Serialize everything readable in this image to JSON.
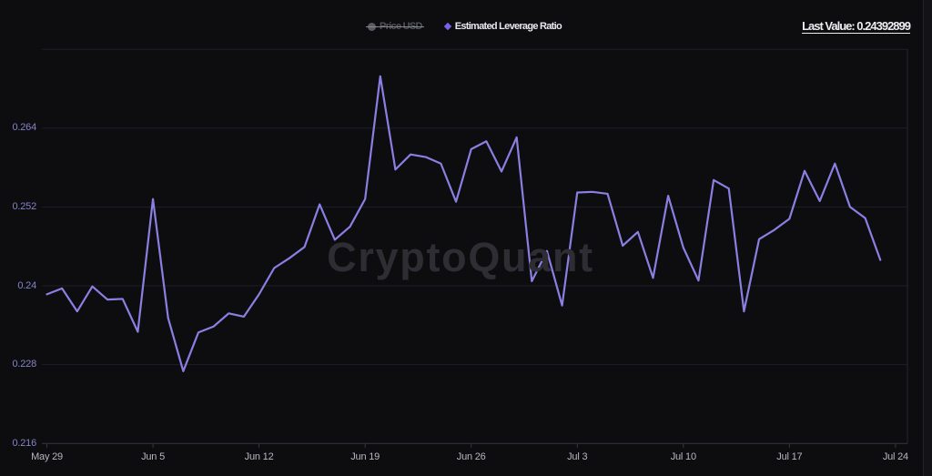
{
  "header": {
    "last_value_text": "Last Value: 0.24392899"
  },
  "legend": {
    "items": [
      {
        "label": "Price USD",
        "marker": "circle",
        "disabled": true,
        "marker_color": "#5a5a61"
      },
      {
        "label": "Estimated Leverage Ratio",
        "marker": "diamond",
        "disabled": false,
        "marker_color": "#7a5ee6"
      }
    ]
  },
  "watermark": {
    "text": "CryptoQuant"
  },
  "colors": {
    "background": "#0d0d10",
    "series_line": "#8b7fe2",
    "gridline": "#1f1f24",
    "axis_line": "#36363c",
    "plot_right_border": "#28282d",
    "y_label": "#8683c6",
    "x_label": "#b8b8bd"
  },
  "chart_data": {
    "type": "line",
    "title": "",
    "xlabel": "",
    "ylabel": "",
    "legend_position": "top-center",
    "grid": "horizontal",
    "series": [
      {
        "name": "Estimated Leverage Ratio",
        "color": "#8b7fe2",
        "values": [
          0.2387,
          0.2396,
          0.2361,
          0.2399,
          0.2379,
          0.238,
          0.233,
          0.2532,
          0.2351,
          0.227,
          0.2329,
          0.2338,
          0.2358,
          0.2353,
          0.2387,
          0.2427,
          0.2442,
          0.2459,
          0.2524,
          0.247,
          0.249,
          0.2532,
          0.2719,
          0.2577,
          0.26,
          0.2596,
          0.2586,
          0.2528,
          0.2608,
          0.262,
          0.2574,
          0.2626,
          0.2407,
          0.2453,
          0.237,
          0.2542,
          0.2543,
          0.254,
          0.2461,
          0.2482,
          0.2412,
          0.2537,
          0.2458,
          0.2408,
          0.2561,
          0.2548,
          0.2361,
          0.2471,
          0.2485,
          0.2502,
          0.2575,
          0.2529,
          0.2586,
          0.252,
          0.2503,
          0.24392899
        ]
      },
      {
        "name": "Price USD",
        "visible": false,
        "values": []
      }
    ],
    "x_ticks": [
      {
        "label": "May 29",
        "day": 0
      },
      {
        "label": "Jun 5",
        "day": 7
      },
      {
        "label": "Jun 12",
        "day": 14
      },
      {
        "label": "Jun 19",
        "day": 21
      },
      {
        "label": "Jun 26",
        "day": 28
      },
      {
        "label": "Jul 3",
        "day": 35
      },
      {
        "label": "Jul 10",
        "day": 42
      },
      {
        "label": "Jul 17",
        "day": 49
      },
      {
        "label": "Jul 24",
        "day": 56
      }
    ],
    "y_ticks": [
      {
        "label": "0.216",
        "value": 0.216
      },
      {
        "label": "0.228",
        "value": 0.228
      },
      {
        "label": "0.24",
        "value": 0.24
      },
      {
        "label": "0.252",
        "value": 0.252
      },
      {
        "label": "0.264",
        "value": 0.264
      }
    ],
    "y_gridline_values": [
      0.216,
      0.228,
      0.24,
      0.252,
      0.264,
      0.276
    ],
    "ylim": [
      0.216,
      0.28351
    ]
  }
}
